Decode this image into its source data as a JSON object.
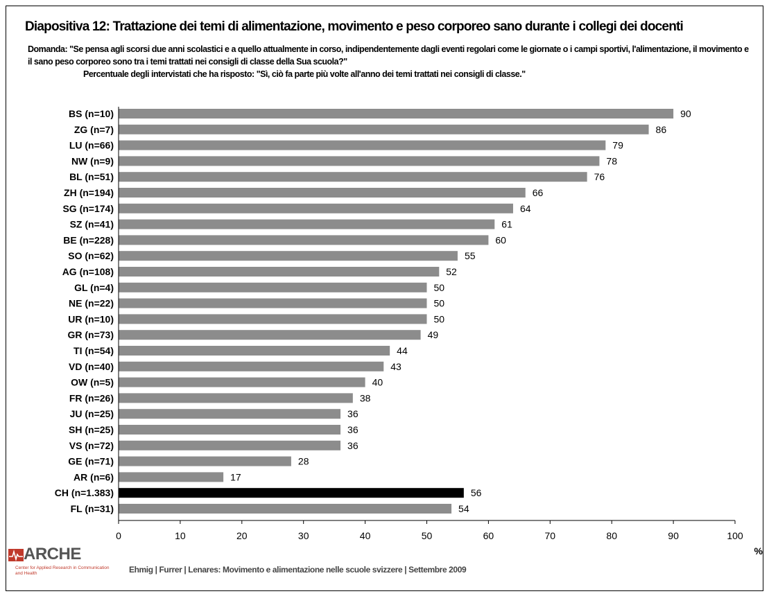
{
  "slide": {
    "title": "Diapositiva 12: Trattazione dei temi di alimentazione, movimento e peso corporeo sano durante i collegi dei docenti",
    "question_label": "Domanda:",
    "question_text": "\"Se pensa agli scorsi due anni scolastici e a quello attualmente in corso, indipendentemente dagli eventi regolari come le giornate o i campi sportivi, l'alimentazione, il movimento e il sano peso corporeo sono tra i temi trattati nei consigli di classe della Sua scuola?\"",
    "question_sub": "Percentuale degli intervistati che ha risposto: \"Sì, ciò fa parte più volte all'anno dei temi trattati nei consigli di classe.\"",
    "footer": "Ehmig | Furrer | Lenares: Movimento e alimentazione nelle scuole svizzere | Settembre 2009",
    "logo": {
      "name": "ARCHE",
      "subtitle": "Center for Applied Research in Communication and Health"
    },
    "colors": {
      "bar": "#8c8c8c",
      "highlight_bar": "#000000",
      "logo_accent": "#c0392b"
    }
  },
  "chart_data": {
    "type": "bar",
    "orientation": "horizontal",
    "categories": [
      "BS (n=10)",
      "ZG (n=7)",
      "LU (n=66)",
      "NW (n=9)",
      "BL (n=51)",
      "ZH (n=194)",
      "SG (n=174)",
      "SZ (n=41)",
      "BE (n=228)",
      "SO (n=62)",
      "AG (n=108)",
      "GL (n=4)",
      "NE (n=22)",
      "UR (n=10)",
      "GR (n=73)",
      "TI (n=54)",
      "VD (n=40)",
      "OW (n=5)",
      "FR (n=26)",
      "JU (n=25)",
      "SH (n=25)",
      "VS (n=72)",
      "GE (n=71)",
      "AR (n=6)",
      "CH (n=1.383)",
      "FL (n=31)"
    ],
    "values": [
      90,
      86,
      79,
      78,
      76,
      66,
      64,
      61,
      60,
      55,
      52,
      50,
      50,
      50,
      49,
      44,
      43,
      40,
      38,
      36,
      36,
      36,
      28,
      17,
      56,
      54
    ],
    "highlight": "CH (n=1.383)",
    "xlim": [
      0,
      100
    ],
    "xticks": [
      0,
      10,
      20,
      30,
      40,
      50,
      60,
      70,
      80,
      90,
      100
    ],
    "xlabel": "%",
    "grid": false
  }
}
